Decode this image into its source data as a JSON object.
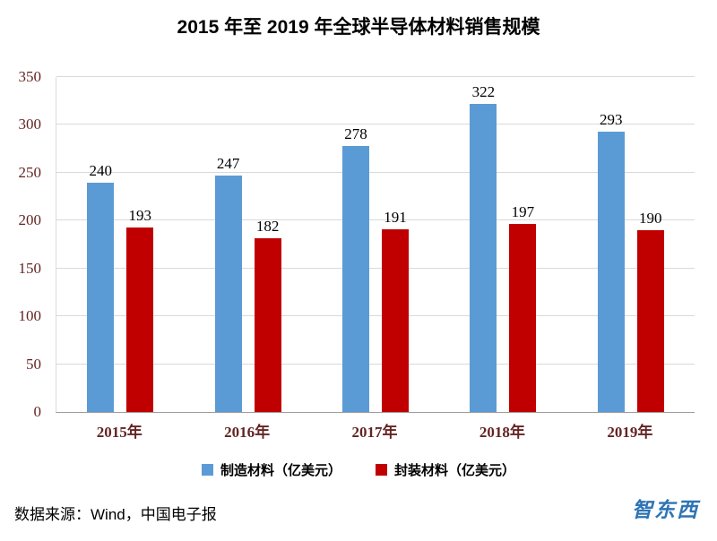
{
  "title": "2015 年至 2019 年全球半导体材料销售规模",
  "source": "数据来源：Wind，中国电子报",
  "watermark": "智东西",
  "chart_data": {
    "type": "bar",
    "title": "2015 年至 2019 年全球半导体材料销售规模",
    "categories": [
      "2015年",
      "2016年",
      "2017年",
      "2018年",
      "2019年"
    ],
    "series": [
      {
        "name": "制造材料（亿美元）",
        "color": "#5B9BD5",
        "values": [
          240,
          247,
          278,
          322,
          293
        ]
      },
      {
        "name": "封装材料（亿美元）",
        "color": "#C00000",
        "values": [
          193,
          182,
          191,
          197,
          190
        ]
      }
    ],
    "xlabel": "",
    "ylabel": "",
    "ylim": [
      0,
      350
    ],
    "ytick_step": 50,
    "grid": true,
    "legend_position": "bottom"
  }
}
